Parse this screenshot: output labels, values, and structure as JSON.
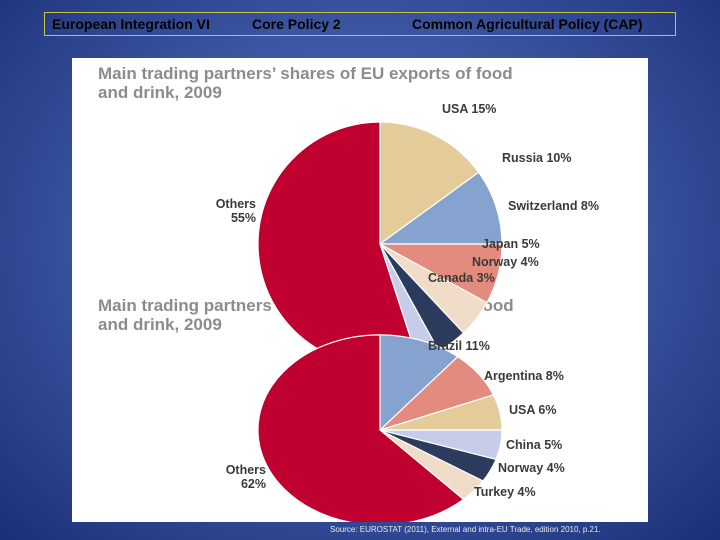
{
  "header": {
    "left": "European Integration VI",
    "middle": "Core Policy 2",
    "right": "Common Agricultural Policy (CAP)"
  },
  "colors": {
    "others": "#c0002e",
    "usa": "#e3cb9a",
    "russia": "#86a3cf",
    "switzerland": "#e48b80",
    "japan": "#f1dcc8",
    "norway": "#2a3b5e",
    "canada": "#c6ccea",
    "brazil": "#86a3cf",
    "argentina": "#e48b80",
    "china": "#c6ccea",
    "turkey": "#f1dcc8",
    "title": "#8c8c8c"
  },
  "chart_data": [
    {
      "type": "pie",
      "title": "Main trading partners’ shares of EU exports of food and drink, 2009",
      "title_lines": [
        "Main trading partners’ shares of EU exports of food",
        "and drink, 2009"
      ],
      "slices": [
        {
          "name": "USA",
          "value": 15,
          "label": "USA 15%",
          "color_key": "usa"
        },
        {
          "name": "Russia",
          "value": 10,
          "label": "Russia 10%",
          "color_key": "russia"
        },
        {
          "name": "Switzerland",
          "value": 8,
          "label": "Switzerland 8%",
          "color_key": "switzerland"
        },
        {
          "name": "Japan",
          "value": 5,
          "label": "Japan 5%",
          "color_key": "japan"
        },
        {
          "name": "Norway",
          "value": 4,
          "label": "Norway 4%",
          "color_key": "norway"
        },
        {
          "name": "Canada",
          "value": 3,
          "label": "Canada 3%",
          "color_key": "canada"
        },
        {
          "name": "Others",
          "value": 55,
          "label": "Others\n55%",
          "color_key": "others"
        }
      ]
    },
    {
      "type": "pie",
      "title": "Main trading partners’ shares of EU imports of food and drink, 2009",
      "title_lines": [
        "Main trading partners’ shares of EU imports of food",
        "and drink, 2009"
      ],
      "slices": [
        {
          "name": "Brazil",
          "value": 11,
          "label": "Brazil 11%",
          "color_key": "brazil"
        },
        {
          "name": "Argentina",
          "value": 8,
          "label": "Argentina 8%",
          "color_key": "argentina"
        },
        {
          "name": "USA",
          "value": 6,
          "label": "USA 6%",
          "color_key": "usa"
        },
        {
          "name": "China",
          "value": 5,
          "label": "China 5%",
          "color_key": "china"
        },
        {
          "name": "Norway",
          "value": 4,
          "label": "Norway 4%",
          "color_key": "norway"
        },
        {
          "name": "Turkey",
          "value": 4,
          "label": "Turkey 4%",
          "color_key": "turkey"
        },
        {
          "name": "Others",
          "value": 62,
          "label": "Others\n62%",
          "color_key": "others"
        }
      ]
    }
  ],
  "source": "Source: EUROSTAT (2011), External and intra-EU Trade, edition 2010, p.21."
}
